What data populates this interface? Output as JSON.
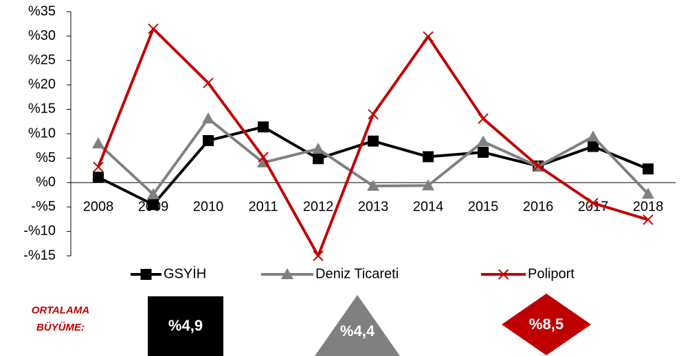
{
  "chart_data": {
    "type": "line",
    "categories": [
      "2008",
      "2009",
      "2010",
      "2011",
      "2012",
      "2013",
      "2014",
      "2015",
      "2016",
      "2017",
      "2018"
    ],
    "series": [
      {
        "name": "GSYİH",
        "color": "#000000",
        "marker": "square",
        "values": [
          1.1,
          -4.5,
          8.6,
          11.4,
          4.9,
          8.5,
          5.3,
          6.2,
          3.4,
          7.4,
          2.8
        ]
      },
      {
        "name": "Deniz Ticareti",
        "color": "#808080",
        "marker": "triangle",
        "values": [
          8.0,
          -2.4,
          13.1,
          4.1,
          6.9,
          -0.7,
          -0.6,
          8.4,
          3.3,
          9.4,
          -2.3
        ]
      },
      {
        "name": "Poliport",
        "color": "#c00000",
        "marker": "x",
        "values": [
          3.2,
          31.5,
          20.4,
          5.2,
          -15,
          14.0,
          29.9,
          13.1,
          3.4,
          -4.2,
          -7.6
        ]
      }
    ],
    "ylim": [
      -15,
      35
    ],
    "yticks": [
      {
        "value": 35,
        "label": "%35"
      },
      {
        "value": 30,
        "label": "%30"
      },
      {
        "value": 25,
        "label": "%25"
      },
      {
        "value": 20,
        "label": "%20"
      },
      {
        "value": 15,
        "label": "%15"
      },
      {
        "value": 10,
        "label": "%10"
      },
      {
        "value": 5,
        "label": "%5"
      },
      {
        "value": 0,
        "label": "%0"
      },
      {
        "value": -5,
        "label": "-%5"
      },
      {
        "value": -10,
        "label": "-%10"
      },
      {
        "value": -15,
        "label": "-%15"
      }
    ],
    "legend": "bottom",
    "averages": {
      "label": [
        "ORTALAMA",
        "BÜYÜME:"
      ],
      "values": [
        4.9,
        4.4,
        8.5
      ],
      "value_labels": [
        "%4,9",
        "%4,4",
        "%8,5"
      ]
    }
  }
}
